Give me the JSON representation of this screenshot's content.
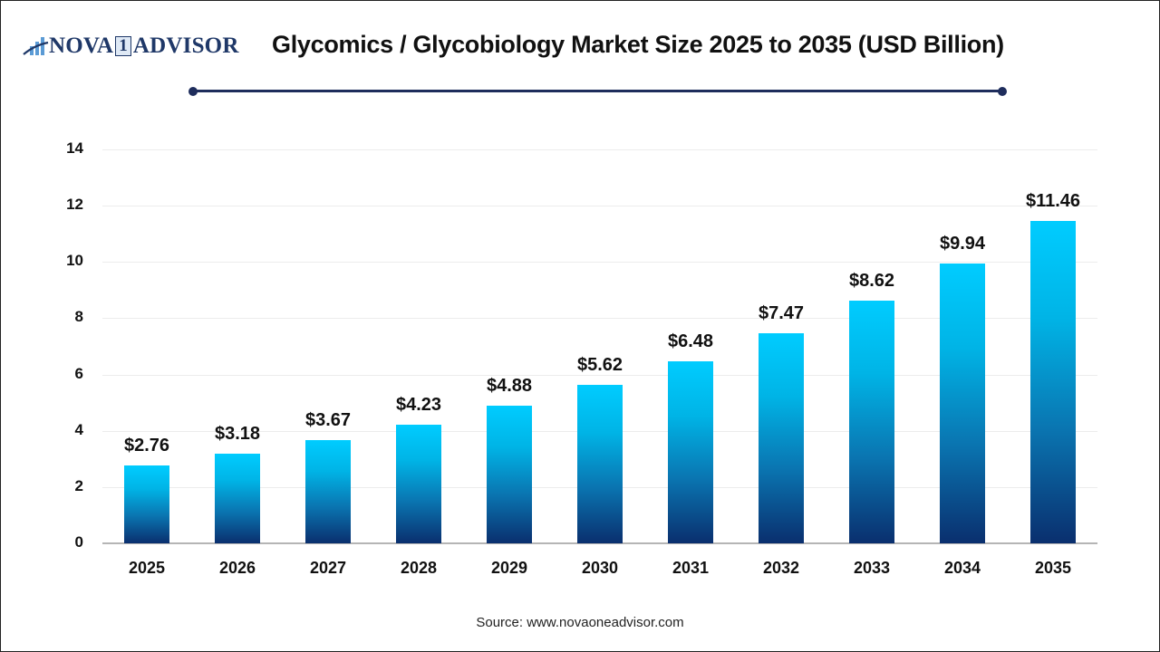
{
  "brand": {
    "name_left": "NOVA",
    "name_box": "1",
    "name_right": "ADVISOR",
    "logo_icon": "bar-chart-swoosh-icon",
    "colors": {
      "navy": "#1f3868",
      "light_blue": "#5b9bd5"
    }
  },
  "header": {
    "title": "Glycomics / Glycobiology Market Size 2025 to 2035 (USD Billion)",
    "rule_color": "#1e2d5c"
  },
  "footer": {
    "source": "Source: www.novaoneadvisor.com"
  },
  "chart_data": {
    "type": "bar",
    "title": "Glycomics / Glycobiology Market Size 2025 to 2035 (USD Billion)",
    "xlabel": "",
    "ylabel": "",
    "categories": [
      "2025",
      "2026",
      "2027",
      "2028",
      "2029",
      "2030",
      "2031",
      "2032",
      "2033",
      "2034",
      "2035"
    ],
    "values": [
      2.76,
      3.18,
      3.67,
      4.23,
      4.88,
      5.62,
      6.48,
      7.47,
      8.62,
      9.94,
      11.46
    ],
    "value_labels": [
      "$2.76",
      "$3.18",
      "$3.67",
      "$4.23",
      "$4.88",
      "$5.62",
      "$6.48",
      "$7.47",
      "$8.62",
      "$9.94",
      "$11.46"
    ],
    "ylim": [
      0,
      14
    ],
    "yticks": [
      "0",
      "2",
      "4",
      "6",
      "8",
      "10",
      "12",
      "14"
    ],
    "grid": true,
    "legend": null,
    "bar_gradient": {
      "top": "#00ccff",
      "bottom": "#0a2f6e"
    }
  }
}
